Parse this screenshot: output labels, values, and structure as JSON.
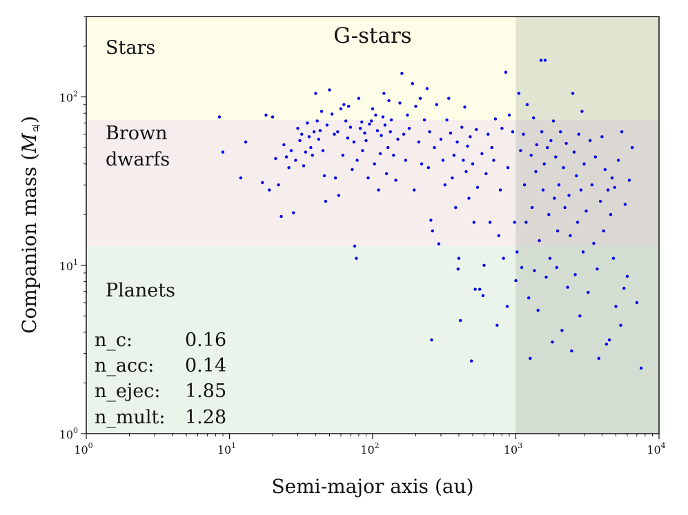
{
  "chart_data": {
    "type": "scatter",
    "title": "G-stars",
    "title_color": "#ff0000",
    "xlabel": "Semi-major axis (au)",
    "ylabel": "Companion mass (M♃)",
    "ylabel_main": "Companion mass (",
    "ylabel_symbol": "M",
    "ylabel_subscript": "♃",
    "ylabel_close": ")",
    "xscale": "log",
    "yscale": "log",
    "xlim": [
      1,
      10000
    ],
    "ylim": [
      1,
      300
    ],
    "x_ticks": [
      {
        "value": 1,
        "base": "10",
        "exp": "0"
      },
      {
        "value": 10,
        "base": "10",
        "exp": "1"
      },
      {
        "value": 100,
        "base": "10",
        "exp": "2"
      },
      {
        "value": 1000,
        "base": "10",
        "exp": "3"
      },
      {
        "value": 10000,
        "base": "10",
        "exp": "4"
      }
    ],
    "y_ticks": [
      {
        "value": 1,
        "base": "10",
        "exp": "0"
      },
      {
        "value": 10,
        "base": "10",
        "exp": "1"
      },
      {
        "value": 100,
        "base": "10",
        "exp": "2"
      }
    ],
    "regions": [
      {
        "name": "Stars",
        "label_lines": [
          "Stars"
        ],
        "ymin": 73,
        "ymax": 300,
        "color": "#fdfde8"
      },
      {
        "name": "Brown dwarfs",
        "label_lines": [
          "Brown",
          "dwarfs"
        ],
        "ymin": 13,
        "ymax": 73,
        "color": "#f5eeec"
      },
      {
        "name": "Planets",
        "label_lines": [
          "Planets"
        ],
        "ymin": 1,
        "ymax": 13,
        "color": "#ebf4ea"
      }
    ],
    "shaded_band": {
      "xmin": 1000,
      "xmax": 10000,
      "color": "#7f8c7f",
      "opacity": 0.22
    },
    "marker_color": "#0000ee",
    "stats": [
      {
        "label": "n_c:",
        "value": "0.16"
      },
      {
        "label": "n_acc:",
        "value": "0.14"
      },
      {
        "label": "n_ejec:",
        "value": "1.85"
      },
      {
        "label": "n_mult:",
        "value": "1.28"
      }
    ],
    "points": [
      [
        8.5,
        76
      ],
      [
        9,
        47
      ],
      [
        12,
        33
      ],
      [
        13,
        54
      ],
      [
        17,
        31
      ],
      [
        18,
        78
      ],
      [
        19,
        28
      ],
      [
        20,
        76
      ],
      [
        21,
        43
      ],
      [
        22,
        30
      ],
      [
        23,
        19.5
      ],
      [
        24,
        52
      ],
      [
        25,
        44
      ],
      [
        26,
        38
      ],
      [
        27,
        48
      ],
      [
        28,
        20.5
      ],
      [
        29,
        42
      ],
      [
        30,
        65
      ],
      [
        31,
        55
      ],
      [
        32,
        60
      ],
      [
        33,
        39
      ],
      [
        34,
        47
      ],
      [
        35,
        70
      ],
      [
        36,
        58
      ],
      [
        37,
        50
      ],
      [
        38,
        45
      ],
      [
        39,
        62
      ],
      [
        40,
        105
      ],
      [
        41,
        72
      ],
      [
        42,
        56
      ],
      [
        43,
        63
      ],
      [
        44,
        82
      ],
      [
        45,
        48
      ],
      [
        46,
        34
      ],
      [
        47,
        24
      ],
      [
        48,
        68
      ],
      [
        50,
        110
      ],
      [
        52,
        79
      ],
      [
        54,
        60
      ],
      [
        55,
        33
      ],
      [
        57,
        62
      ],
      [
        58,
        26
      ],
      [
        60,
        85
      ],
      [
        62,
        45
      ],
      [
        63,
        90
      ],
      [
        65,
        72
      ],
      [
        67,
        57
      ],
      [
        68,
        88
      ],
      [
        70,
        66
      ],
      [
        72,
        37
      ],
      [
        74,
        54
      ],
      [
        75,
        13
      ],
      [
        77,
        11
      ],
      [
        78,
        42
      ],
      [
        80,
        98
      ],
      [
        82,
        65
      ],
      [
        84,
        71
      ],
      [
        85,
        48
      ],
      [
        88,
        61
      ],
      [
        90,
        55
      ],
      [
        93,
        33
      ],
      [
        95,
        69
      ],
      [
        98,
        72
      ],
      [
        100,
        85
      ],
      [
        103,
        40
      ],
      [
        105,
        78
      ],
      [
        108,
        63
      ],
      [
        110,
        28
      ],
      [
        113,
        46
      ],
      [
        115,
        59
      ],
      [
        118,
        76
      ],
      [
        120,
        105
      ],
      [
        122,
        68
      ],
      [
        125,
        35
      ],
      [
        128,
        50
      ],
      [
        130,
        95
      ],
      [
        133,
        62
      ],
      [
        135,
        73
      ],
      [
        140,
        45
      ],
      [
        145,
        32
      ],
      [
        150,
        56
      ],
      [
        155,
        92
      ],
      [
        160,
        138
      ],
      [
        165,
        60
      ],
      [
        170,
        42
      ],
      [
        175,
        78
      ],
      [
        180,
        65
      ],
      [
        190,
        120
      ],
      [
        195,
        28
      ],
      [
        200,
        88
      ],
      [
        210,
        54
      ],
      [
        215,
        98
      ],
      [
        220,
        40
      ],
      [
        230,
        73
      ],
      [
        240,
        112
      ],
      [
        245,
        38
      ],
      [
        250,
        62
      ],
      [
        255,
        18.5
      ],
      [
        258,
        3.6
      ],
      [
        262,
        16
      ],
      [
        270,
        50
      ],
      [
        280,
        90
      ],
      [
        290,
        13.4
      ],
      [
        300,
        56
      ],
      [
        310,
        42
      ],
      [
        320,
        30
      ],
      [
        330,
        73
      ],
      [
        340,
        98
      ],
      [
        350,
        61
      ],
      [
        360,
        33
      ],
      [
        370,
        45
      ],
      [
        380,
        22
      ],
      [
        390,
        54
      ],
      [
        395,
        9.5
      ],
      [
        400,
        11
      ],
      [
        410,
        4.7
      ],
      [
        420,
        66
      ],
      [
        430,
        42
      ],
      [
        440,
        87
      ],
      [
        450,
        36
      ],
      [
        460,
        51
      ],
      [
        470,
        25
      ],
      [
        480,
        58
      ],
      [
        490,
        2.7
      ],
      [
        500,
        40
      ],
      [
        510,
        18
      ],
      [
        520,
        7.2
      ],
      [
        530,
        64
      ],
      [
        540,
        29
      ],
      [
        560,
        7.2
      ],
      [
        580,
        46
      ],
      [
        590,
        6.6
      ],
      [
        600,
        10
      ],
      [
        620,
        35
      ],
      [
        640,
        60
      ],
      [
        660,
        18
      ],
      [
        680,
        50
      ],
      [
        700,
        42
      ],
      [
        720,
        74
      ],
      [
        740,
        4.4
      ],
      [
        760,
        15
      ],
      [
        780,
        28
      ],
      [
        800,
        65
      ],
      [
        820,
        11
      ],
      [
        850,
        140
      ],
      [
        870,
        5.7
      ],
      [
        880,
        38
      ],
      [
        900,
        78
      ],
      [
        950,
        62
      ],
      [
        980,
        18
      ],
      [
        1000,
        8.1
      ],
      [
        1020,
        12
      ],
      [
        1050,
        105
      ],
      [
        1080,
        48
      ],
      [
        1100,
        9.7
      ],
      [
        1130,
        60
      ],
      [
        1150,
        30
      ],
      [
        1180,
        18
      ],
      [
        1200,
        90
      ],
      [
        1230,
        6.4
      ],
      [
        1260,
        2.8
      ],
      [
        1280,
        45
      ],
      [
        1300,
        22
      ],
      [
        1330,
        75
      ],
      [
        1350,
        9.3
      ],
      [
        1380,
        36
      ],
      [
        1400,
        52
      ],
      [
        1430,
        5.4
      ],
      [
        1460,
        14
      ],
      [
        1500,
        165
      ],
      [
        1520,
        62
      ],
      [
        1550,
        28
      ],
      [
        1580,
        40
      ],
      [
        1600,
        165
      ],
      [
        1630,
        8.5
      ],
      [
        1660,
        50
      ],
      [
        1700,
        20
      ],
      [
        1730,
        11
      ],
      [
        1760,
        55
      ],
      [
        1800,
        3.5
      ],
      [
        1830,
        72
      ],
      [
        1860,
        25
      ],
      [
        1900,
        44
      ],
      [
        1930,
        9.7
      ],
      [
        1960,
        16
      ],
      [
        2000,
        30
      ],
      [
        2050,
        62
      ],
      [
        2100,
        4.1
      ],
      [
        2150,
        38
      ],
      [
        2200,
        22
      ],
      [
        2250,
        53
      ],
      [
        2300,
        7.4
      ],
      [
        2350,
        26
      ],
      [
        2400,
        15
      ],
      [
        2450,
        3.1
      ],
      [
        2500,
        105
      ],
      [
        2550,
        47
      ],
      [
        2600,
        8.8
      ],
      [
        2650,
        34
      ],
      [
        2700,
        18
      ],
      [
        2750,
        60
      ],
      [
        2800,
        5.0
      ],
      [
        2850,
        28
      ],
      [
        2900,
        82
      ],
      [
        2950,
        12
      ],
      [
        3000,
        40
      ],
      [
        3100,
        21
      ],
      [
        3200,
        6.9
      ],
      [
        3300,
        55
      ],
      [
        3400,
        30
      ],
      [
        3500,
        13.5
      ],
      [
        3600,
        44
      ],
      [
        3700,
        9.5
      ],
      [
        3800,
        2.8
      ],
      [
        3900,
        24
      ],
      [
        4000,
        58
      ],
      [
        4100,
        16
      ],
      [
        4200,
        37
      ],
      [
        4300,
        3.4
      ],
      [
        4400,
        28
      ],
      [
        4500,
        3.6
      ],
      [
        4600,
        20
      ],
      [
        4700,
        33
      ],
      [
        4800,
        11
      ],
      [
        4900,
        29
      ],
      [
        5000,
        5.7
      ],
      [
        5200,
        42
      ],
      [
        5400,
        4.4
      ],
      [
        5500,
        62
      ],
      [
        5700,
        7.3
      ],
      [
        5800,
        23
      ],
      [
        6000,
        8.6
      ],
      [
        6200,
        32
      ],
      [
        6500,
        50
      ],
      [
        7000,
        6.0
      ],
      [
        7500,
        2.45
      ]
    ]
  }
}
